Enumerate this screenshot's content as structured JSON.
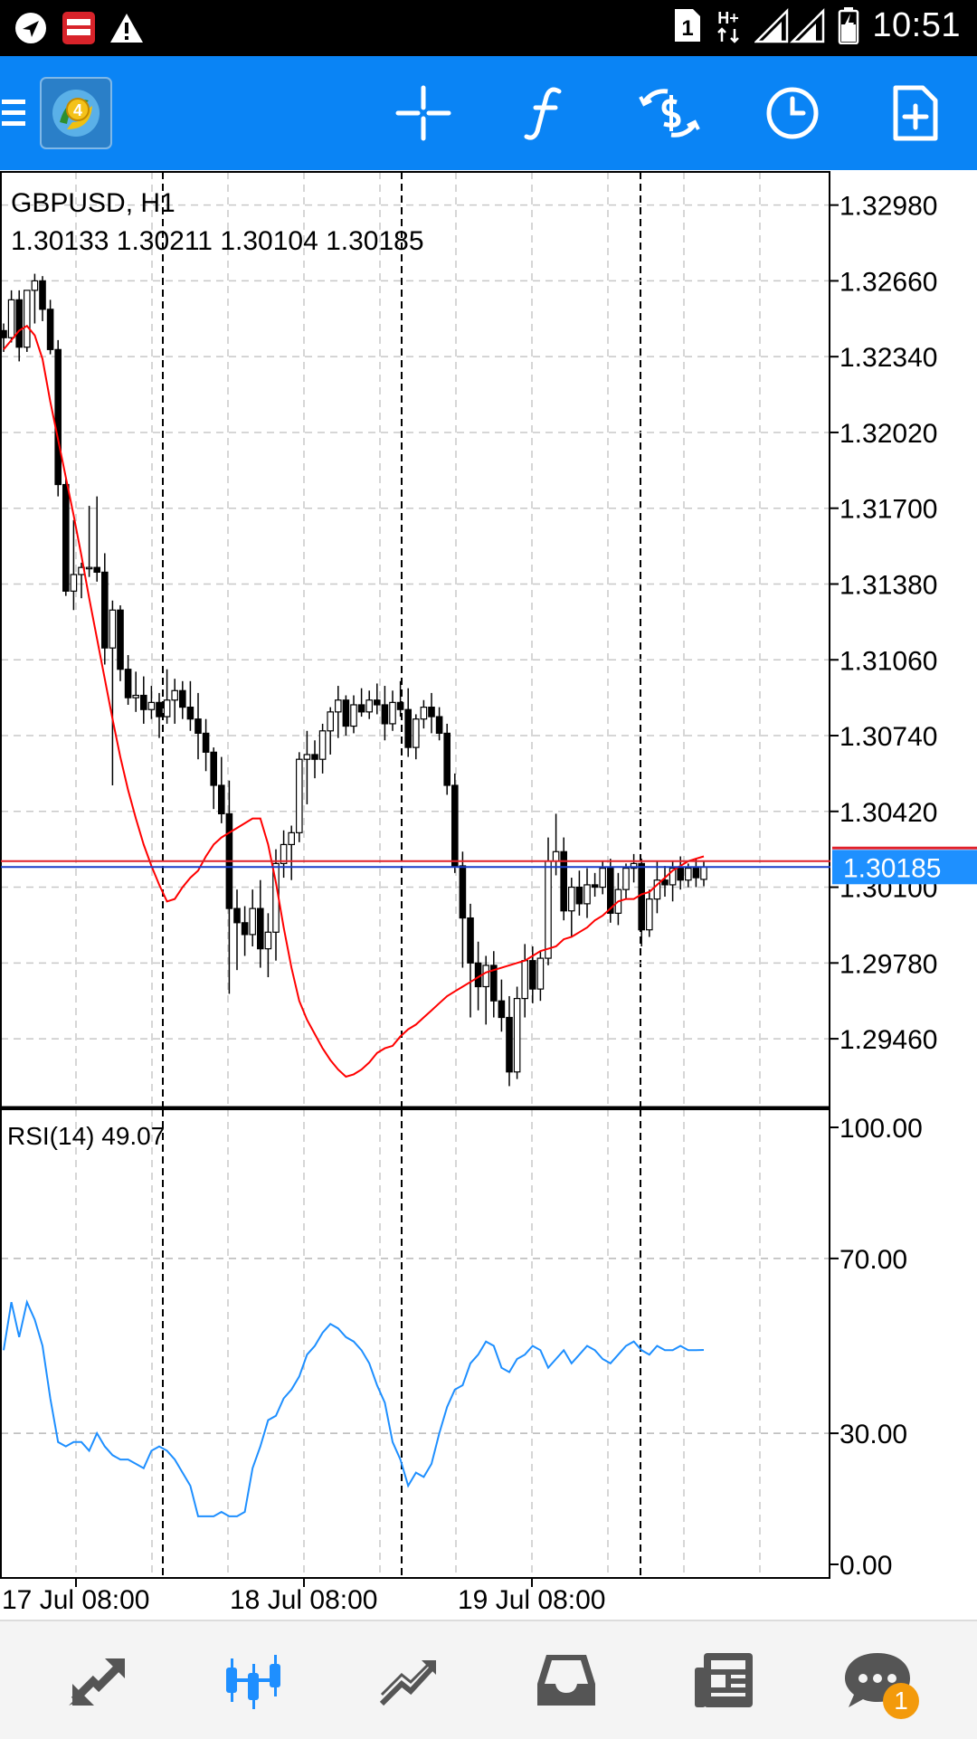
{
  "status_bar": {
    "time": "10:51",
    "sim_badge": "1",
    "network": "H+",
    "icons": [
      "navigation-icon",
      "money-locker-icon",
      "warning-icon",
      "sim-icon",
      "signal-icon",
      "battery-icon"
    ]
  },
  "toolbar": {
    "icons": [
      "menu-icon",
      "metatrader4-logo",
      "crosshair-icon",
      "indicators-icon",
      "symbols-icon",
      "timeframe-icon",
      "new-order-icon"
    ]
  },
  "chart": {
    "symbol_line": "GBPUSD, H1",
    "ohlc_line": "1.30133 1.30211 1.30104 1.30185",
    "price_ticks": [
      "1.32980",
      "1.32660",
      "1.32340",
      "1.32020",
      "1.31700",
      "1.31380",
      "1.31060",
      "1.30740",
      "1.30420",
      "1.30100",
      "1.29780",
      "1.29460"
    ],
    "current_price": "1.30185",
    "rsi_label": "RSI(14) 49.07",
    "rsi_ticks": [
      "100.00",
      "70.00",
      "30.00",
      "0.00"
    ],
    "time_labels": [
      "17 Jul 08:00",
      "18 Jul 08:00",
      "19 Jul 08:00"
    ],
    "colors": {
      "bid_line": "#1a3cc8",
      "ask_line": "#e0202a",
      "moving_average": "#ff0000",
      "rsi_line": "#1e8fff",
      "price_label_bg": "#1e90ff"
    }
  },
  "chart_data": {
    "type": "candlestick",
    "symbol": "GBPUSD",
    "timeframe": "H1",
    "last_ohlc": {
      "open": 1.30133,
      "high": 1.30211,
      "low": 1.30104,
      "close": 1.30185
    },
    "price_range": [
      1.2917,
      1.3312
    ],
    "current_price": 1.30185,
    "ask_price": 1.3021,
    "moving_average": [
      1.3237,
      1.3241,
      1.3245,
      1.3247,
      1.3243,
      1.3233,
      1.3215,
      1.3199,
      1.3183,
      1.3167,
      1.315,
      1.3132,
      1.3115,
      1.3098,
      1.3081,
      1.3065,
      1.3051,
      1.3039,
      1.3028,
      1.3019,
      1.3011,
      1.3004,
      1.3005,
      1.301,
      1.3014,
      1.3017,
      1.3023,
      1.3028,
      1.3031,
      1.3033,
      1.3035,
      1.3037,
      1.3039,
      1.3039,
      1.3028,
      1.3012,
      1.2993,
      1.2976,
      1.2962,
      1.2954,
      1.2948,
      1.2942,
      1.2937,
      1.2933,
      1.293,
      1.2931,
      1.2933,
      1.2936,
      1.294,
      1.2942,
      1.2943,
      1.2947,
      1.295,
      1.2952,
      1.2955,
      1.2958,
      1.2961,
      1.2964,
      1.2966,
      1.2968,
      1.297,
      1.2972,
      1.2974,
      1.2975,
      1.2976,
      1.2977,
      1.2978,
      1.2979,
      1.2981,
      1.2983,
      1.2984,
      1.2985,
      1.2988,
      1.2989,
      1.2991,
      1.2993,
      1.2996,
      1.2998,
      1.3001,
      1.3004,
      1.3005,
      1.3005,
      1.3007,
      1.3008,
      1.3011,
      1.3014,
      1.3017,
      1.3019,
      1.3021,
      1.3022,
      1.3023
    ],
    "ohlc": [
      [
        1.3245,
        1.3248,
        1.3236,
        1.3242
      ],
      [
        1.3242,
        1.3262,
        1.324,
        1.3258
      ],
      [
        1.3258,
        1.3262,
        1.3232,
        1.3238
      ],
      [
        1.3238,
        1.3262,
        1.3236,
        1.3262
      ],
      [
        1.3262,
        1.3269,
        1.3248,
        1.3266
      ],
      [
        1.3266,
        1.3268,
        1.3249,
        1.3254
      ],
      [
        1.3254,
        1.3258,
        1.3235,
        1.3237
      ],
      [
        1.3237,
        1.3241,
        1.3175,
        1.318
      ],
      [
        1.318,
        1.3183,
        1.3133,
        1.3135
      ],
      [
        1.3135,
        1.3165,
        1.3127,
        1.3142
      ],
      [
        1.3142,
        1.3147,
        1.3132,
        1.3145
      ],
      [
        1.3145,
        1.3171,
        1.3141,
        1.3145
      ],
      [
        1.3145,
        1.3175,
        1.3139,
        1.3143
      ],
      [
        1.3143,
        1.3151,
        1.3104,
        1.3111
      ],
      [
        1.3111,
        1.3131,
        1.3053,
        1.3127
      ],
      [
        1.3127,
        1.3129,
        1.3097,
        1.3102
      ],
      [
        1.3102,
        1.3108,
        1.3087,
        1.309
      ],
      [
        1.309,
        1.3101,
        1.3084,
        1.3091
      ],
      [
        1.3091,
        1.3099,
        1.3079,
        1.3085
      ],
      [
        1.3085,
        1.3095,
        1.3081,
        1.3088
      ],
      [
        1.3088,
        1.3092,
        1.3073,
        1.3082
      ],
      [
        1.3082,
        1.3102,
        1.3079,
        1.3089
      ],
      [
        1.3089,
        1.3098,
        1.3079,
        1.3093
      ],
      [
        1.3093,
        1.3097,
        1.3081,
        1.3086
      ],
      [
        1.3086,
        1.3097,
        1.3076,
        1.3081
      ],
      [
        1.3081,
        1.3092,
        1.3064,
        1.3075
      ],
      [
        1.3075,
        1.3081,
        1.3059,
        1.3067
      ],
      [
        1.3067,
        1.3069,
        1.3043,
        1.3053
      ],
      [
        1.3053,
        1.3065,
        1.3037,
        1.3041
      ],
      [
        1.3041,
        1.3055,
        1.2965,
        1.3001
      ],
      [
        1.3001,
        1.3009,
        1.2975,
        1.2995
      ],
      [
        1.2995,
        1.3002,
        1.2981,
        1.299
      ],
      [
        1.299,
        1.3009,
        1.2985,
        1.3001
      ],
      [
        1.3001,
        1.3013,
        1.2976,
        1.2984
      ],
      [
        1.2984,
        1.2999,
        1.2972,
        1.2991
      ],
      [
        1.2991,
        1.3026,
        1.2979,
        1.302
      ],
      [
        1.302,
        1.3034,
        1.3014,
        1.3028
      ],
      [
        1.3028,
        1.3036,
        1.3013,
        1.3033
      ],
      [
        1.3033,
        1.3067,
        1.3029,
        1.3064
      ],
      [
        1.3064,
        1.3076,
        1.3045,
        1.3066
      ],
      [
        1.3066,
        1.3072,
        1.3056,
        1.3064
      ],
      [
        1.3064,
        1.3079,
        1.3058,
        1.3076
      ],
      [
        1.3076,
        1.3086,
        1.3066,
        1.3084
      ],
      [
        1.3084,
        1.3095,
        1.3073,
        1.3089
      ],
      [
        1.3089,
        1.3091,
        1.3074,
        1.3078
      ],
      [
        1.3078,
        1.3091,
        1.3075,
        1.3087
      ],
      [
        1.3087,
        1.3094,
        1.3082,
        1.3084
      ],
      [
        1.3084,
        1.3093,
        1.3081,
        1.3089
      ],
      [
        1.3089,
        1.3096,
        1.3083,
        1.3087
      ],
      [
        1.3087,
        1.3095,
        1.3072,
        1.3079
      ],
      [
        1.3079,
        1.3093,
        1.3076,
        1.3088
      ],
      [
        1.3088,
        1.3097,
        1.3082,
        1.3085
      ],
      [
        1.3085,
        1.3094,
        1.3065,
        1.3069
      ],
      [
        1.3069,
        1.3083,
        1.3064,
        1.3081
      ],
      [
        1.3081,
        1.3089,
        1.3077,
        1.3086
      ],
      [
        1.3086,
        1.3092,
        1.3075,
        1.3082
      ],
      [
        1.3082,
        1.3086,
        1.3072,
        1.3075
      ],
      [
        1.3075,
        1.3079,
        1.3049,
        1.3053
      ],
      [
        1.3053,
        1.3058,
        1.3016,
        1.3019
      ],
      [
        1.3019,
        1.3025,
        1.2976,
        1.2997
      ],
      [
        1.2997,
        1.3003,
        1.2955,
        1.2978
      ],
      [
        1.2978,
        1.2987,
        1.2958,
        1.2968
      ],
      [
        1.2968,
        1.2981,
        1.2952,
        1.2977
      ],
      [
        1.2977,
        1.2983,
        1.2955,
        1.2962
      ],
      [
        1.2962,
        1.2971,
        1.2949,
        1.2955
      ],
      [
        1.2955,
        1.2964,
        1.2926,
        1.2932
      ],
      [
        1.2932,
        1.2968,
        1.2929,
        1.2963
      ],
      [
        1.2963,
        1.2986,
        1.2955,
        1.2979
      ],
      [
        1.2979,
        1.2985,
        1.2961,
        1.2967
      ],
      [
        1.2967,
        1.2983,
        1.2962,
        1.298
      ],
      [
        1.298,
        1.3031,
        1.2977,
        1.3021
      ],
      [
        1.3021,
        1.3041,
        1.3015,
        1.3025
      ],
      [
        1.3025,
        1.3031,
        1.2996,
        1.3
      ],
      [
        1.3,
        1.3014,
        1.2989,
        1.301
      ],
      [
        1.301,
        1.3017,
        1.2998,
        1.3003
      ],
      [
        1.3003,
        1.3018,
        1.2997,
        1.3011
      ],
      [
        1.3011,
        1.3016,
        1.3006,
        1.301
      ],
      [
        1.301,
        1.3021,
        1.3007,
        1.3018
      ],
      [
        1.3018,
        1.3022,
        1.2995,
        1.2999
      ],
      [
        1.2999,
        1.3016,
        1.2994,
        1.3009
      ],
      [
        1.3009,
        1.302,
        1.3005,
        1.3018
      ],
      [
        1.3018,
        1.3024,
        1.3012,
        1.302
      ],
      [
        1.302,
        1.3022,
        1.2985,
        1.2992
      ],
      [
        1.2992,
        1.3009,
        1.2989,
        1.3005
      ],
      [
        1.3005,
        1.3021,
        1.2999,
        1.3013
      ],
      [
        1.3013,
        1.3019,
        1.3006,
        1.3011
      ],
      [
        1.3011,
        1.3021,
        1.3004,
        1.3018
      ],
      [
        1.3018,
        1.3023,
        1.3009,
        1.3013
      ],
      [
        1.3013,
        1.302,
        1.301,
        1.3018
      ],
      [
        1.3018,
        1.3022,
        1.301,
        1.3014
      ],
      [
        1.30133,
        1.30211,
        1.30104,
        1.30185
      ]
    ],
    "rsi": {
      "period": 14,
      "last": 49.07,
      "range": [
        0,
        100
      ],
      "levels": [
        30,
        70
      ],
      "values": [
        49,
        60,
        52,
        60,
        56,
        50,
        38,
        28,
        27,
        28,
        28,
        26,
        30,
        27,
        25,
        24,
        24,
        23,
        22,
        26,
        27,
        26,
        24,
        21,
        18,
        11,
        11,
        11,
        12,
        11,
        11,
        12,
        22,
        27,
        33,
        34,
        38,
        40,
        43,
        48,
        50,
        53,
        55,
        54,
        52,
        51,
        49,
        46,
        41,
        37,
        28,
        24,
        18,
        21,
        20,
        23,
        30,
        36,
        40,
        41,
        46,
        48,
        51,
        50,
        45,
        44,
        47,
        48,
        50,
        49,
        45,
        47,
        49,
        46,
        48,
        50,
        49,
        47,
        46,
        48,
        50,
        51,
        49,
        48,
        50,
        49,
        49,
        50,
        49,
        49,
        49.07
      ]
    },
    "x_labels": [
      "17 Jul 08:00",
      "18 Jul 08:00",
      "19 Jul 08:00"
    ]
  },
  "bottom_nav": {
    "items": [
      "quotes-icon",
      "chart-icon",
      "trade-icon",
      "history-icon",
      "news-icon",
      "messages-icon"
    ],
    "messages_badge": "1"
  }
}
